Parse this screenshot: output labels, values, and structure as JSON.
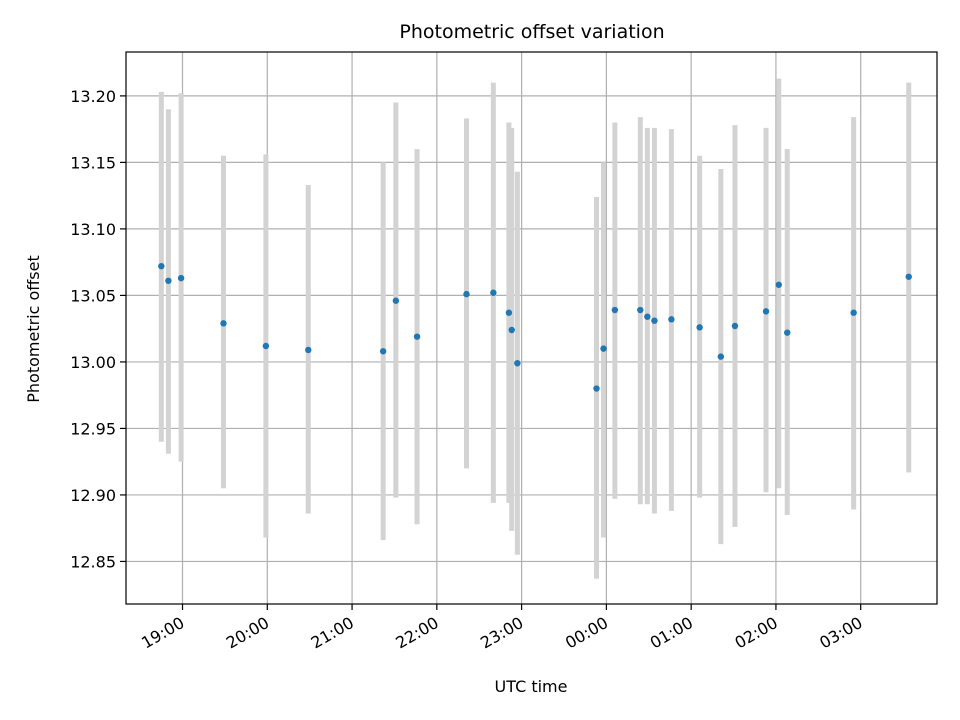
{
  "chart_data": {
    "type": "scatter",
    "title": "Photometric offset variation",
    "xlabel": "UTC time",
    "ylabel": "Photometric offset",
    "grid": true,
    "x_ticks": [
      "19:00",
      "20:00",
      "21:00",
      "22:00",
      "23:00",
      "00:00",
      "01:00",
      "02:00",
      "03:00"
    ],
    "y_ticks": [
      "12.85",
      "12.90",
      "12.95",
      "13.00",
      "13.05",
      "13.10",
      "13.15",
      "13.20"
    ],
    "xlim": [
      "18:20",
      "03:54"
    ],
    "ylim": [
      12.818,
      13.233
    ],
    "colors": {
      "point": "#1f77b4",
      "errorbar": "#d3d3d3",
      "grid": "#b0b0b0"
    },
    "points": [
      {
        "x": "18:45",
        "y": 13.072,
        "yerr_low": 12.94,
        "yerr_high": 13.203
      },
      {
        "x": "18:50",
        "y": 13.061,
        "yerr_low": 12.931,
        "yerr_high": 13.19
      },
      {
        "x": "18:59",
        "y": 13.063,
        "yerr_low": 12.925,
        "yerr_high": 13.202
      },
      {
        "x": "19:29",
        "y": 13.029,
        "yerr_low": 12.905,
        "yerr_high": 13.155
      },
      {
        "x": "19:59",
        "y": 13.012,
        "yerr_low": 12.868,
        "yerr_high": 13.156
      },
      {
        "x": "20:29",
        "y": 13.009,
        "yerr_low": 12.886,
        "yerr_high": 13.133
      },
      {
        "x": "21:22",
        "y": 13.008,
        "yerr_low": 12.866,
        "yerr_high": 13.15
      },
      {
        "x": "21:31",
        "y": 13.046,
        "yerr_low": 12.898,
        "yerr_high": 13.195
      },
      {
        "x": "21:46",
        "y": 13.019,
        "yerr_low": 12.878,
        "yerr_high": 13.16
      },
      {
        "x": "22:21",
        "y": 13.051,
        "yerr_low": 12.92,
        "yerr_high": 13.183
      },
      {
        "x": "22:40",
        "y": 13.052,
        "yerr_low": 12.894,
        "yerr_high": 13.21
      },
      {
        "x": "22:51",
        "y": 13.037,
        "yerr_low": 12.894,
        "yerr_high": 13.18
      },
      {
        "x": "22:53",
        "y": 13.024,
        "yerr_low": 12.873,
        "yerr_high": 13.176
      },
      {
        "x": "22:57",
        "y": 12.999,
        "yerr_low": 12.855,
        "yerr_high": 13.143
      },
      {
        "x": "23:53",
        "y": 12.98,
        "yerr_low": 12.837,
        "yerr_high": 13.124
      },
      {
        "x": "23:58",
        "y": 13.01,
        "yerr_low": 12.868,
        "yerr_high": 13.15
      },
      {
        "x": "00:06",
        "y": 13.039,
        "yerr_low": 12.897,
        "yerr_high": 13.18
      },
      {
        "x": "00:24",
        "y": 13.039,
        "yerr_low": 12.893,
        "yerr_high": 13.184
      },
      {
        "x": "00:29",
        "y": 13.034,
        "yerr_low": 12.893,
        "yerr_high": 13.176
      },
      {
        "x": "00:34",
        "y": 13.031,
        "yerr_low": 12.886,
        "yerr_high": 13.176
      },
      {
        "x": "00:46",
        "y": 13.032,
        "yerr_low": 12.888,
        "yerr_high": 13.175
      },
      {
        "x": "01:06",
        "y": 13.026,
        "yerr_low": 12.898,
        "yerr_high": 13.155
      },
      {
        "x": "01:21",
        "y": 13.004,
        "yerr_low": 12.863,
        "yerr_high": 13.145
      },
      {
        "x": "01:31",
        "y": 13.027,
        "yerr_low": 12.876,
        "yerr_high": 13.178
      },
      {
        "x": "01:53",
        "y": 13.038,
        "yerr_low": 12.902,
        "yerr_high": 13.176
      },
      {
        "x": "02:02",
        "y": 13.058,
        "yerr_low": 12.905,
        "yerr_high": 13.213
      },
      {
        "x": "02:08",
        "y": 13.022,
        "yerr_low": 12.885,
        "yerr_high": 13.16
      },
      {
        "x": "02:55",
        "y": 13.037,
        "yerr_low": 12.889,
        "yerr_high": 13.184
      },
      {
        "x": "03:34",
        "y": 13.064,
        "yerr_low": 12.917,
        "yerr_high": 13.21
      }
    ]
  }
}
